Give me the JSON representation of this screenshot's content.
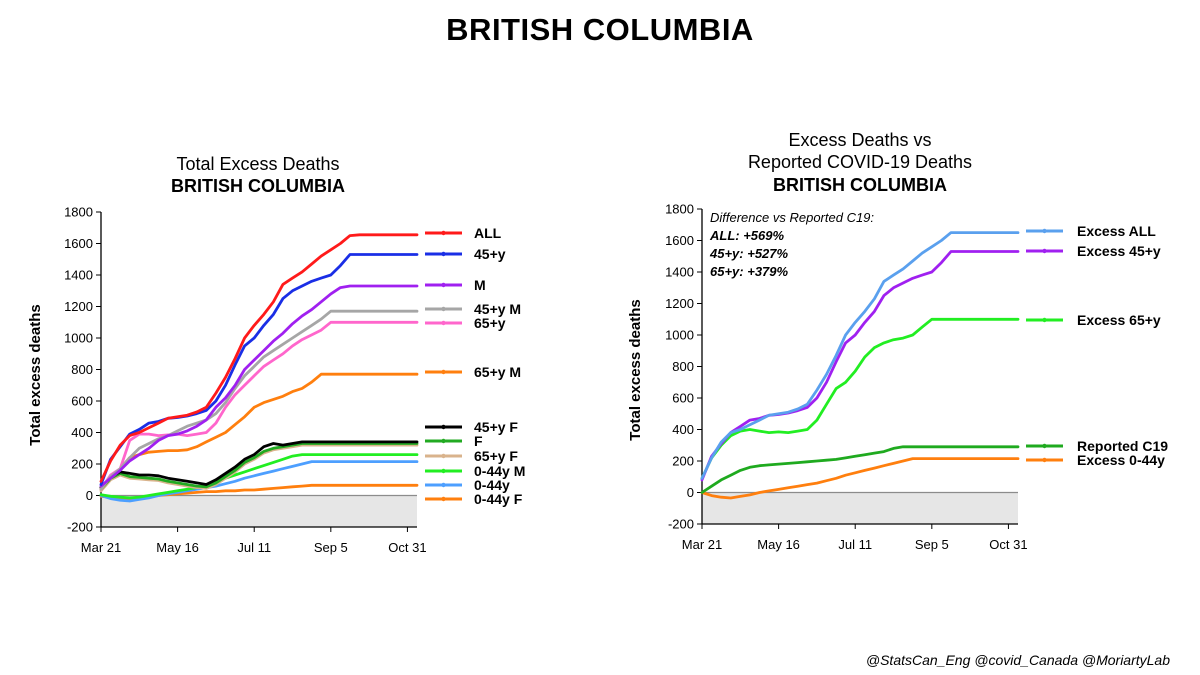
{
  "page": {
    "title": "BRITISH COLUMBIA",
    "credit": "@StatsCan_Eng @covid_Canada @MoriartyLab"
  },
  "chart_data": [
    {
      "type": "line",
      "title": "Total Excess Deaths",
      "subtitle": "BRITISH COLUMBIA",
      "xlabel": "",
      "ylabel": "Total excess deaths",
      "ylim": [
        -200,
        1800
      ],
      "yticks": [
        -200,
        0,
        200,
        400,
        600,
        800,
        1000,
        1200,
        1400,
        1600,
        1800
      ],
      "xticks": [
        "Mar 21",
        "May 16",
        "Jul 11",
        "Sep 5",
        "Oct 31"
      ],
      "x_range_weeks": [
        0,
        33
      ],
      "grid": false,
      "shaded_below_zero": true,
      "legend_placement": "right",
      "series": [
        {
          "name": "ALL",
          "color": "#ff1a1a",
          "values": [
            90,
            220,
            320,
            380,
            400,
            430,
            460,
            490,
            500,
            510,
            530,
            560,
            650,
            750,
            870,
            1000,
            1080,
            1150,
            1230,
            1340,
            1380,
            1420,
            1470,
            1520,
            1560,
            1600,
            1650,
            1655,
            1655,
            1655,
            1655,
            1655,
            1655,
            1655
          ]
        },
        {
          "name": "45+y",
          "color": "#1a2ee6",
          "values": [
            70,
            230,
            310,
            390,
            420,
            460,
            470,
            490,
            495,
            505,
            520,
            540,
            600,
            700,
            830,
            950,
            1000,
            1080,
            1150,
            1250,
            1300,
            1330,
            1360,
            1380,
            1400,
            1460,
            1530,
            1530,
            1530,
            1530,
            1530,
            1530,
            1530,
            1530
          ]
        },
        {
          "name": "M",
          "color": "#a020f0",
          "values": [
            60,
            110,
            160,
            220,
            260,
            300,
            350,
            380,
            390,
            410,
            440,
            480,
            560,
            620,
            700,
            800,
            860,
            920,
            980,
            1030,
            1090,
            1140,
            1180,
            1230,
            1280,
            1320,
            1330,
            1330,
            1330,
            1330,
            1330,
            1330,
            1330,
            1330
          ]
        },
        {
          "name": "45+y M",
          "color": "#a6a6a6",
          "values": [
            40,
            120,
            170,
            240,
            300,
            330,
            360,
            380,
            410,
            440,
            460,
            480,
            520,
            590,
            680,
            760,
            820,
            880,
            920,
            960,
            1000,
            1040,
            1080,
            1120,
            1170,
            1170,
            1170,
            1170,
            1170,
            1170,
            1170,
            1170,
            1170,
            1170
          ]
        },
        {
          "name": "65+y",
          "color": "#ff66cc",
          "values": [
            40,
            130,
            170,
            350,
            390,
            390,
            380,
            385,
            390,
            380,
            390,
            400,
            460,
            560,
            640,
            700,
            760,
            820,
            860,
            900,
            950,
            990,
            1020,
            1050,
            1100,
            1100,
            1100,
            1100,
            1100,
            1100,
            1100,
            1100,
            1100,
            1100
          ]
        },
        {
          "name": "65+y M",
          "color": "#ff7f0e",
          "values": [
            40,
            120,
            170,
            240,
            260,
            275,
            280,
            285,
            285,
            290,
            310,
            340,
            370,
            400,
            450,
            500,
            560,
            590,
            610,
            630,
            660,
            680,
            720,
            770,
            770,
            770,
            770,
            770,
            770,
            770,
            770,
            770,
            770,
            770
          ]
        },
        {
          "name": "45+y F",
          "color": "#000000",
          "values": [
            50,
            120,
            150,
            140,
            130,
            130,
            125,
            110,
            100,
            90,
            80,
            70,
            100,
            140,
            180,
            230,
            260,
            310,
            330,
            320,
            330,
            340,
            340,
            340,
            340,
            340,
            340,
            340,
            340,
            340,
            340,
            340,
            340,
            340
          ]
        },
        {
          "name": "F",
          "color": "#22aa22",
          "values": [
            40,
            110,
            140,
            120,
            115,
            110,
            105,
            90,
            80,
            70,
            60,
            55,
            80,
            120,
            160,
            210,
            240,
            280,
            300,
            310,
            320,
            330,
            330,
            330,
            330,
            330,
            330,
            330,
            330,
            330,
            330,
            330,
            330,
            330
          ]
        },
        {
          "name": "65+y F",
          "color": "#d9b38c",
          "values": [
            30,
            100,
            130,
            110,
            105,
            100,
            95,
            80,
            70,
            60,
            50,
            45,
            70,
            110,
            150,
            200,
            230,
            270,
            290,
            300,
            310,
            320,
            320,
            320,
            320,
            320,
            320,
            320,
            320,
            320,
            320,
            320,
            320,
            320
          ]
        },
        {
          "name": "0-44y M",
          "color": "#22ee22",
          "values": [
            5,
            -5,
            -10,
            -15,
            -10,
            0,
            10,
            20,
            30,
            40,
            50,
            70,
            90,
            110,
            130,
            150,
            170,
            190,
            210,
            230,
            250,
            260,
            260,
            260,
            260,
            260,
            260,
            260,
            260,
            260,
            260,
            260,
            260,
            260
          ]
        },
        {
          "name": "0-44y",
          "color": "#4d9fff",
          "values": [
            0,
            -20,
            -30,
            -35,
            -25,
            -15,
            0,
            10,
            20,
            30,
            40,
            50,
            60,
            75,
            90,
            110,
            125,
            140,
            155,
            170,
            185,
            200,
            215,
            215,
            215,
            215,
            215,
            215,
            215,
            215,
            215,
            215,
            215,
            215
          ]
        },
        {
          "name": "0-44y F",
          "color": "#ff7f0e",
          "values": [
            -5,
            -10,
            -15,
            -20,
            -15,
            -10,
            0,
            5,
            10,
            15,
            20,
            25,
            25,
            30,
            30,
            35,
            35,
            40,
            45,
            50,
            55,
            60,
            65,
            65,
            65,
            65,
            65,
            65,
            65,
            65,
            65,
            65,
            65,
            65
          ]
        }
      ]
    },
    {
      "type": "line",
      "title": "Excess Deaths vs Reported COVID-19 Deaths",
      "subtitle": "BRITISH COLUMBIA",
      "xlabel": "",
      "ylabel": "Total excess deaths",
      "ylim": [
        -200,
        1800
      ],
      "yticks": [
        -200,
        0,
        200,
        400,
        600,
        800,
        1000,
        1200,
        1400,
        1600,
        1800
      ],
      "xticks": [
        "Mar 21",
        "May 16",
        "Jul 11",
        "Sep 5",
        "Oct 31"
      ],
      "x_range_weeks": [
        0,
        33
      ],
      "grid": false,
      "shaded_below_zero": true,
      "legend_placement": "right",
      "annotation": {
        "heading": "Difference vs Reported C19:",
        "lines": [
          "ALL: +569%",
          "45+y: +527%",
          "65+y: +379%"
        ]
      },
      "series": [
        {
          "name": "Excess ALL",
          "color": "#5aa0ee",
          "values": [
            90,
            220,
            320,
            380,
            400,
            430,
            460,
            490,
            500,
            510,
            530,
            560,
            650,
            750,
            870,
            1000,
            1080,
            1150,
            1230,
            1340,
            1380,
            1420,
            1470,
            1520,
            1560,
            1600,
            1650,
            1650,
            1650,
            1650,
            1650,
            1650,
            1650,
            1650
          ]
        },
        {
          "name": "Excess 45+y",
          "color": "#a020f0",
          "values": [
            80,
            230,
            310,
            380,
            420,
            460,
            470,
            490,
            495,
            505,
            520,
            540,
            600,
            700,
            830,
            950,
            1000,
            1080,
            1150,
            1250,
            1300,
            1330,
            1360,
            1380,
            1400,
            1460,
            1530,
            1530,
            1530,
            1530,
            1530,
            1530,
            1530,
            1530
          ]
        },
        {
          "name": "Excess 65+y",
          "color": "#22ee22",
          "values": [
            90,
            220,
            300,
            360,
            390,
            400,
            390,
            380,
            385,
            380,
            390,
            400,
            460,
            560,
            660,
            700,
            770,
            860,
            920,
            950,
            970,
            980,
            1000,
            1050,
            1100,
            1100,
            1100,
            1100,
            1100,
            1100,
            1100,
            1100,
            1100,
            1100
          ]
        },
        {
          "name": "Reported C19",
          "color": "#1faa1f",
          "values": [
            0,
            40,
            80,
            110,
            140,
            160,
            170,
            175,
            180,
            185,
            190,
            195,
            200,
            205,
            210,
            220,
            230,
            240,
            250,
            260,
            280,
            290,
            290,
            290,
            290,
            290,
            290,
            290,
            290,
            290,
            290,
            290,
            290,
            290
          ]
        },
        {
          "name": "Excess 0-44y",
          "color": "#ff7f0e",
          "values": [
            0,
            -20,
            -30,
            -35,
            -25,
            -15,
            0,
            10,
            20,
            30,
            40,
            50,
            60,
            75,
            90,
            110,
            125,
            140,
            155,
            170,
            185,
            200,
            215,
            215,
            215,
            215,
            215,
            215,
            215,
            215,
            215,
            215,
            215,
            215
          ]
        }
      ]
    }
  ]
}
